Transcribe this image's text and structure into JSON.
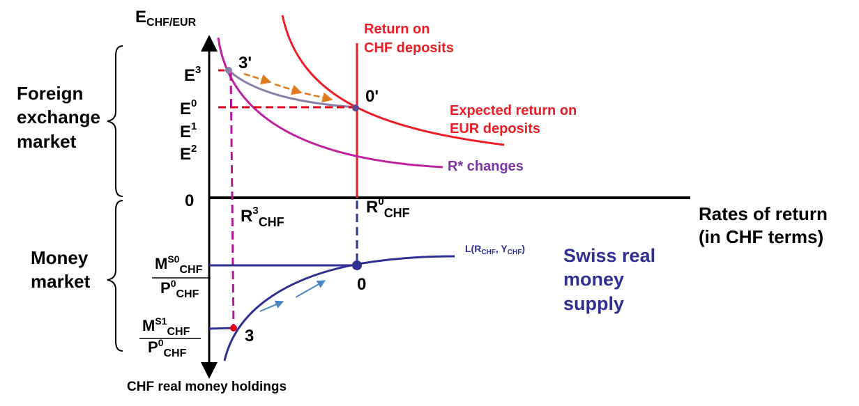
{
  "axes": {
    "y_axis_label": {
      "main": "E",
      "sub": "CHF/EUR"
    },
    "x_axis_label_line1": "Rates of return",
    "x_axis_label_line2": "(in CHF terms)",
    "bottom_axis_label": "CHF real money holdings",
    "origin_label": "0"
  },
  "market_labels": {
    "foreign_exchange": [
      "Foreign",
      "exchange",
      "market"
    ],
    "money": [
      "Money",
      "market"
    ]
  },
  "exchange_rate_ticks": [
    {
      "base": "E",
      "sup": "3"
    },
    {
      "base": "E",
      "sup": "0"
    },
    {
      "base": "E",
      "sup": "1"
    },
    {
      "base": "E",
      "sup": "2"
    }
  ],
  "interest_rate_labels": {
    "r3": {
      "base": "R",
      "sup": "3",
      "sub": "CHF"
    },
    "r0": {
      "base": "R",
      "sup": "0",
      "sub": "CHF"
    }
  },
  "money_supply_labels": {
    "ms0": {
      "num_base": "M",
      "num_sup": "S0",
      "num_sub": "CHF",
      "den_base": "P",
      "den_sup": "0",
      "den_sub": "CHF"
    },
    "ms1": {
      "num_base": "M",
      "num_sup": "S1",
      "num_sub": "CHF",
      "den_base": "P",
      "den_sup": "0",
      "den_sub": "CHF"
    }
  },
  "point_labels": {
    "p3prime": "3'",
    "p0prime": "0'",
    "p0": "0",
    "p3": "3"
  },
  "curve_labels": {
    "chf_return": [
      "Return on",
      "CHF deposits"
    ],
    "eur_return": [
      "Expected return on",
      "EUR deposits"
    ],
    "r_star": "R* changes",
    "money_demand": {
      "l": "L(R",
      "sub1": "CHF",
      "mid": ", Y",
      "sub2": "CHF",
      "close": ")"
    },
    "swiss_supply": [
      "Swiss real",
      "money",
      "supply"
    ]
  },
  "colors": {
    "axis": "#000000",
    "red_curve": "#ee1c25",
    "magenta_curve": "#c0209d",
    "purple_text": "#7b35a3",
    "navy": "#2e3192",
    "dashed_red": "#e3001b",
    "dashed_magenta": "#b5179b",
    "dashed_navy": "#2e3a8c",
    "arrow_orange": "#e07b1c",
    "arrow_blue": "#4a86c5",
    "path_gray": "#8c7fa8"
  }
}
